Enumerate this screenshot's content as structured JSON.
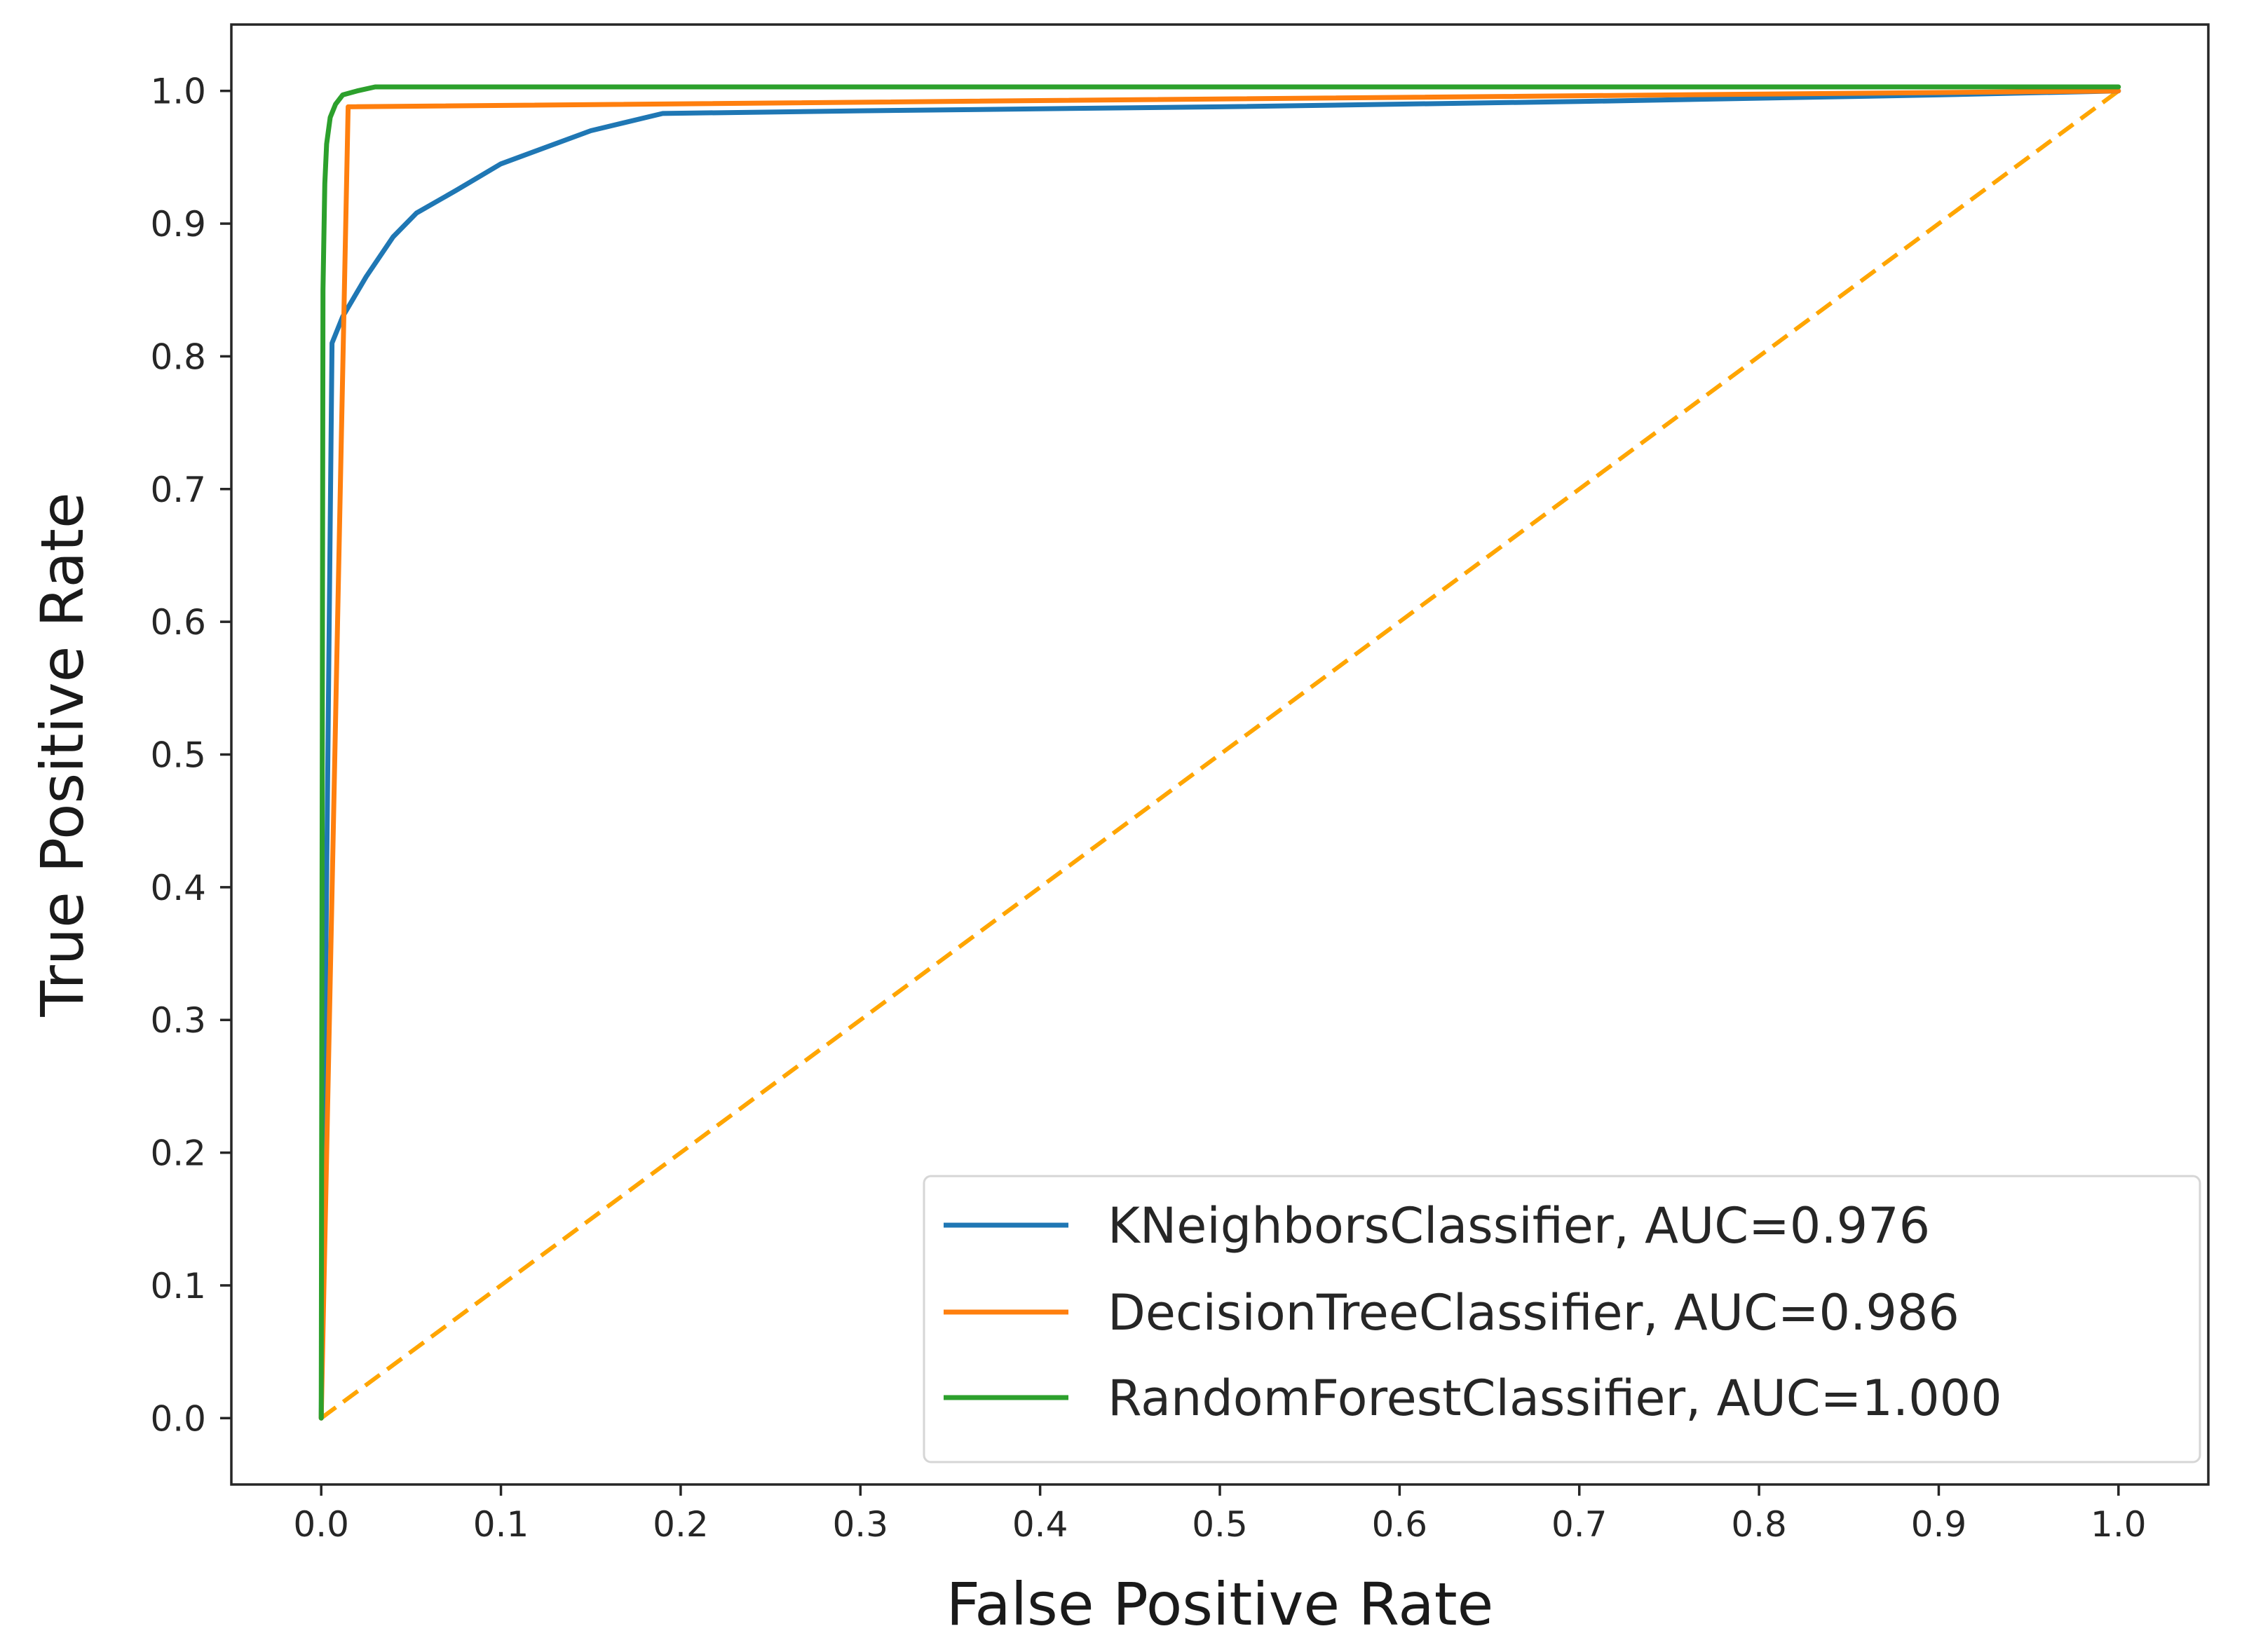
{
  "chart_data": {
    "type": "line",
    "title": "",
    "xlabel": "False Positive Rate",
    "ylabel": "True Positive Rate",
    "xlim": [
      -0.05,
      1.05
    ],
    "ylim": [
      -0.05,
      1.05
    ],
    "xticks": [
      "0.0",
      "0.1",
      "0.2",
      "0.3",
      "0.4",
      "0.5",
      "0.6",
      "0.7",
      "0.8",
      "0.9",
      "1.0"
    ],
    "yticks": [
      "0.0",
      "0.1",
      "0.2",
      "0.3",
      "0.4",
      "0.5",
      "0.6",
      "0.7",
      "0.8",
      "0.9",
      "1.0"
    ],
    "grid": false,
    "legend_position": "lower-right",
    "series": [
      {
        "name": "KNeighborsClassifier, AUC=0.976",
        "color": "#1f77b4",
        "style": "solid",
        "x": [
          0.0,
          0.006,
          0.012,
          0.025,
          0.04,
          0.053,
          0.075,
          0.1,
          0.15,
          0.19,
          0.3,
          0.5,
          0.7,
          0.9,
          1.0
        ],
        "y": [
          0.0,
          0.81,
          0.83,
          0.86,
          0.89,
          0.908,
          0.925,
          0.945,
          0.97,
          0.983,
          0.985,
          0.988,
          0.992,
          0.997,
          1.0
        ]
      },
      {
        "name": "DecisionTreeClassifier, AUC=0.986",
        "color": "#ff7f0e",
        "style": "solid",
        "x": [
          0.0,
          0.015,
          1.0
        ],
        "y": [
          0.0,
          0.988,
          1.0
        ]
      },
      {
        "name": "RandomForestClassifier, AUC=1.000",
        "color": "#2ca02c",
        "style": "solid",
        "x": [
          0.0,
          0.001,
          0.002,
          0.003,
          0.005,
          0.008,
          0.012,
          0.02,
          0.03,
          1.0
        ],
        "y": [
          0.0,
          0.85,
          0.93,
          0.96,
          0.98,
          0.99,
          0.997,
          1.0,
          1.003,
          1.003
        ]
      },
      {
        "name": "chance",
        "color": "#ffa500",
        "style": "dashed",
        "legend": false,
        "x": [
          0.0,
          1.0
        ],
        "y": [
          0.0,
          1.0
        ]
      }
    ]
  }
}
